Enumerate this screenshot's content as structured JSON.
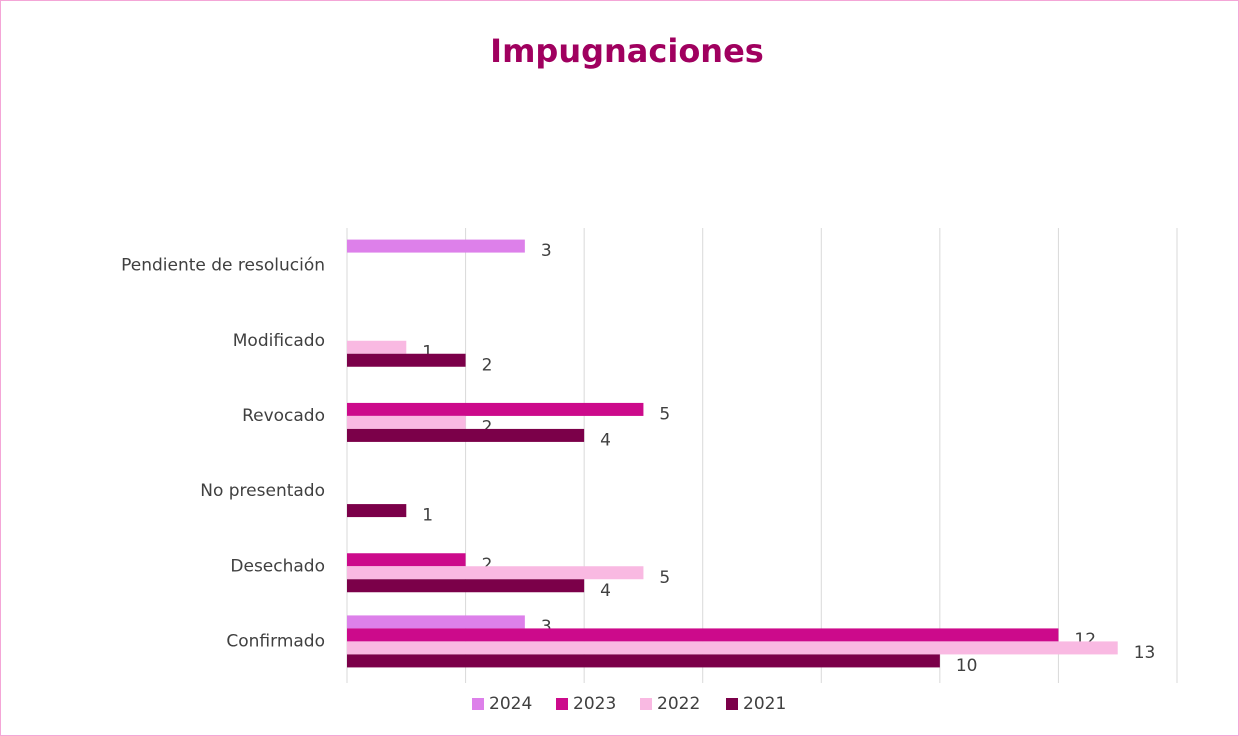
{
  "chart_data": {
    "type": "hbar",
    "title": "Impugnaciones",
    "categories": [
      "Pendiente de resolución",
      "Modificado",
      "Revocado",
      "No presentado",
      "Desechado",
      "Confirmado"
    ],
    "series": [
      {
        "name": "2024",
        "color": "#dd80ea",
        "values": [
          3,
          null,
          null,
          null,
          null,
          3
        ]
      },
      {
        "name": "2023",
        "color": "#cc0a8b",
        "values": [
          null,
          null,
          5,
          null,
          2,
          12
        ]
      },
      {
        "name": "2022",
        "color": "#f9b9e2",
        "values": [
          null,
          1,
          2,
          null,
          5,
          13
        ]
      },
      {
        "name": "2021",
        "color": "#7b0049",
        "values": [
          null,
          2,
          4,
          1,
          4,
          10
        ]
      }
    ],
    "xlim": [
      0,
      14
    ],
    "xticks": [
      0,
      2,
      4,
      6,
      8,
      10,
      12,
      14
    ],
    "grid": true,
    "legend": "bottom"
  }
}
